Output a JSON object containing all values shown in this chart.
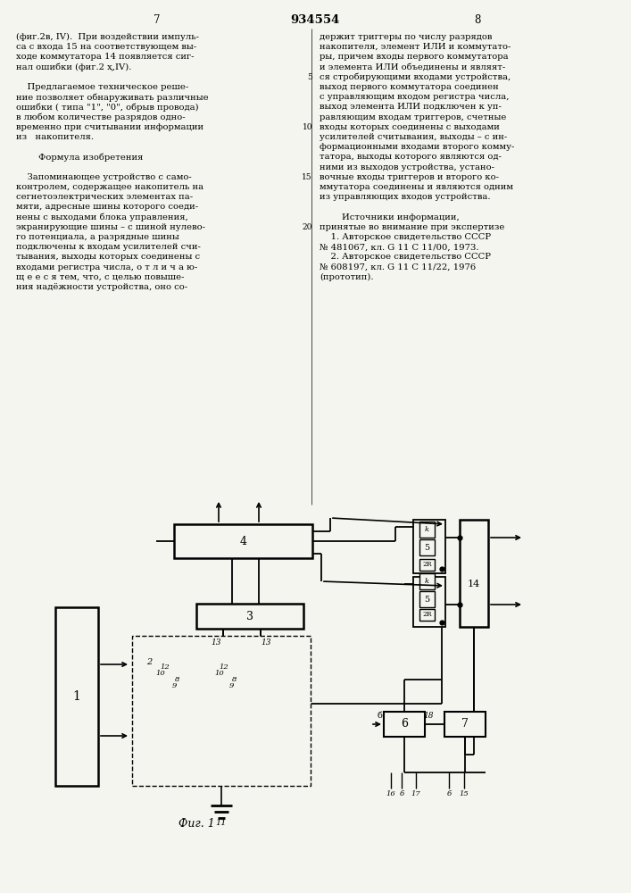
{
  "background_color": "#f5f5f0",
  "text_color": "#000000",
  "font_size": 7.2,
  "left_text": [
    "(фиг.2в, IV).  При воздействии импуль-",
    "са с входа 15 на соответствующем вы-",
    "ходе коммутатора 14 появляется сиг-",
    "нал ошибки (фиг.2 ҳ,IV).",
    "",
    "    Предлагаемое техническое реше-",
    "ние позволяет обнаруживать различные",
    "ошибки ( типа \"1\", \"0\", обрыв провода)",
    "в любом количестве разрядов одно-",
    "временно при считывании информации",
    "из   накопителя.",
    "",
    "        Формула изобретения",
    "",
    "    Запоминающее устройство с само-",
    "контролем, содержащее накопитель на",
    "сегнетоэлектрических элементах па-",
    "мяти, адресные шины которого соеди-",
    "нены с выходами блока управления,",
    "экранирующие шины – с шиной нулево-",
    "го потенциала, а разрядные шины",
    "подключены к входам усилителей счи-",
    "тывания, выходы которых соединены с",
    "входами регистра числа, о т л и ч а ю-",
    "щ е е с я тем, что, с целью повыше-",
    "ния надёжности устройства, оно со-"
  ],
  "right_text": [
    "держит триггеры по числу разрядов",
    "накопителя, элемент ИЛИ и коммутато-",
    "ры, причем входы первого коммутатора",
    "и элемента ИЛИ объединены и являят-",
    "ся стробирующими входами устройства,",
    "выход первого коммутатора соединен",
    "с управляющим входом регистра числа,",
    "выход элемента ИЛИ подключен к уп-",
    "равляющим входам триггеров, счетные",
    "входы которых соединены с выходами",
    "усилителей считывания, выходы – с ин-",
    "формационными входами второго комму-",
    "татора, выходы которого являются од-",
    "ними из выходов устройства, устано-",
    "вочные входы триггеров и второго ко-",
    "ммутатора соединены и являются одним",
    "из управляющих входов устройства.",
    "",
    "        Источники информации,",
    "принятые во внимание при экспертизе",
    "    1. Авторское свидетельство СССР",
    "№ 481067, кл. G 11 C 11/00, 1973.",
    "    2. Авторское свидетельство СССР",
    "№ 608197, кл. G 11 C 11/22, 1976",
    "(прототип)."
  ],
  "line_num_indices": [
    4,
    9,
    14,
    19
  ],
  "line_num_labels": [
    "5",
    "10",
    "15",
    "20"
  ]
}
